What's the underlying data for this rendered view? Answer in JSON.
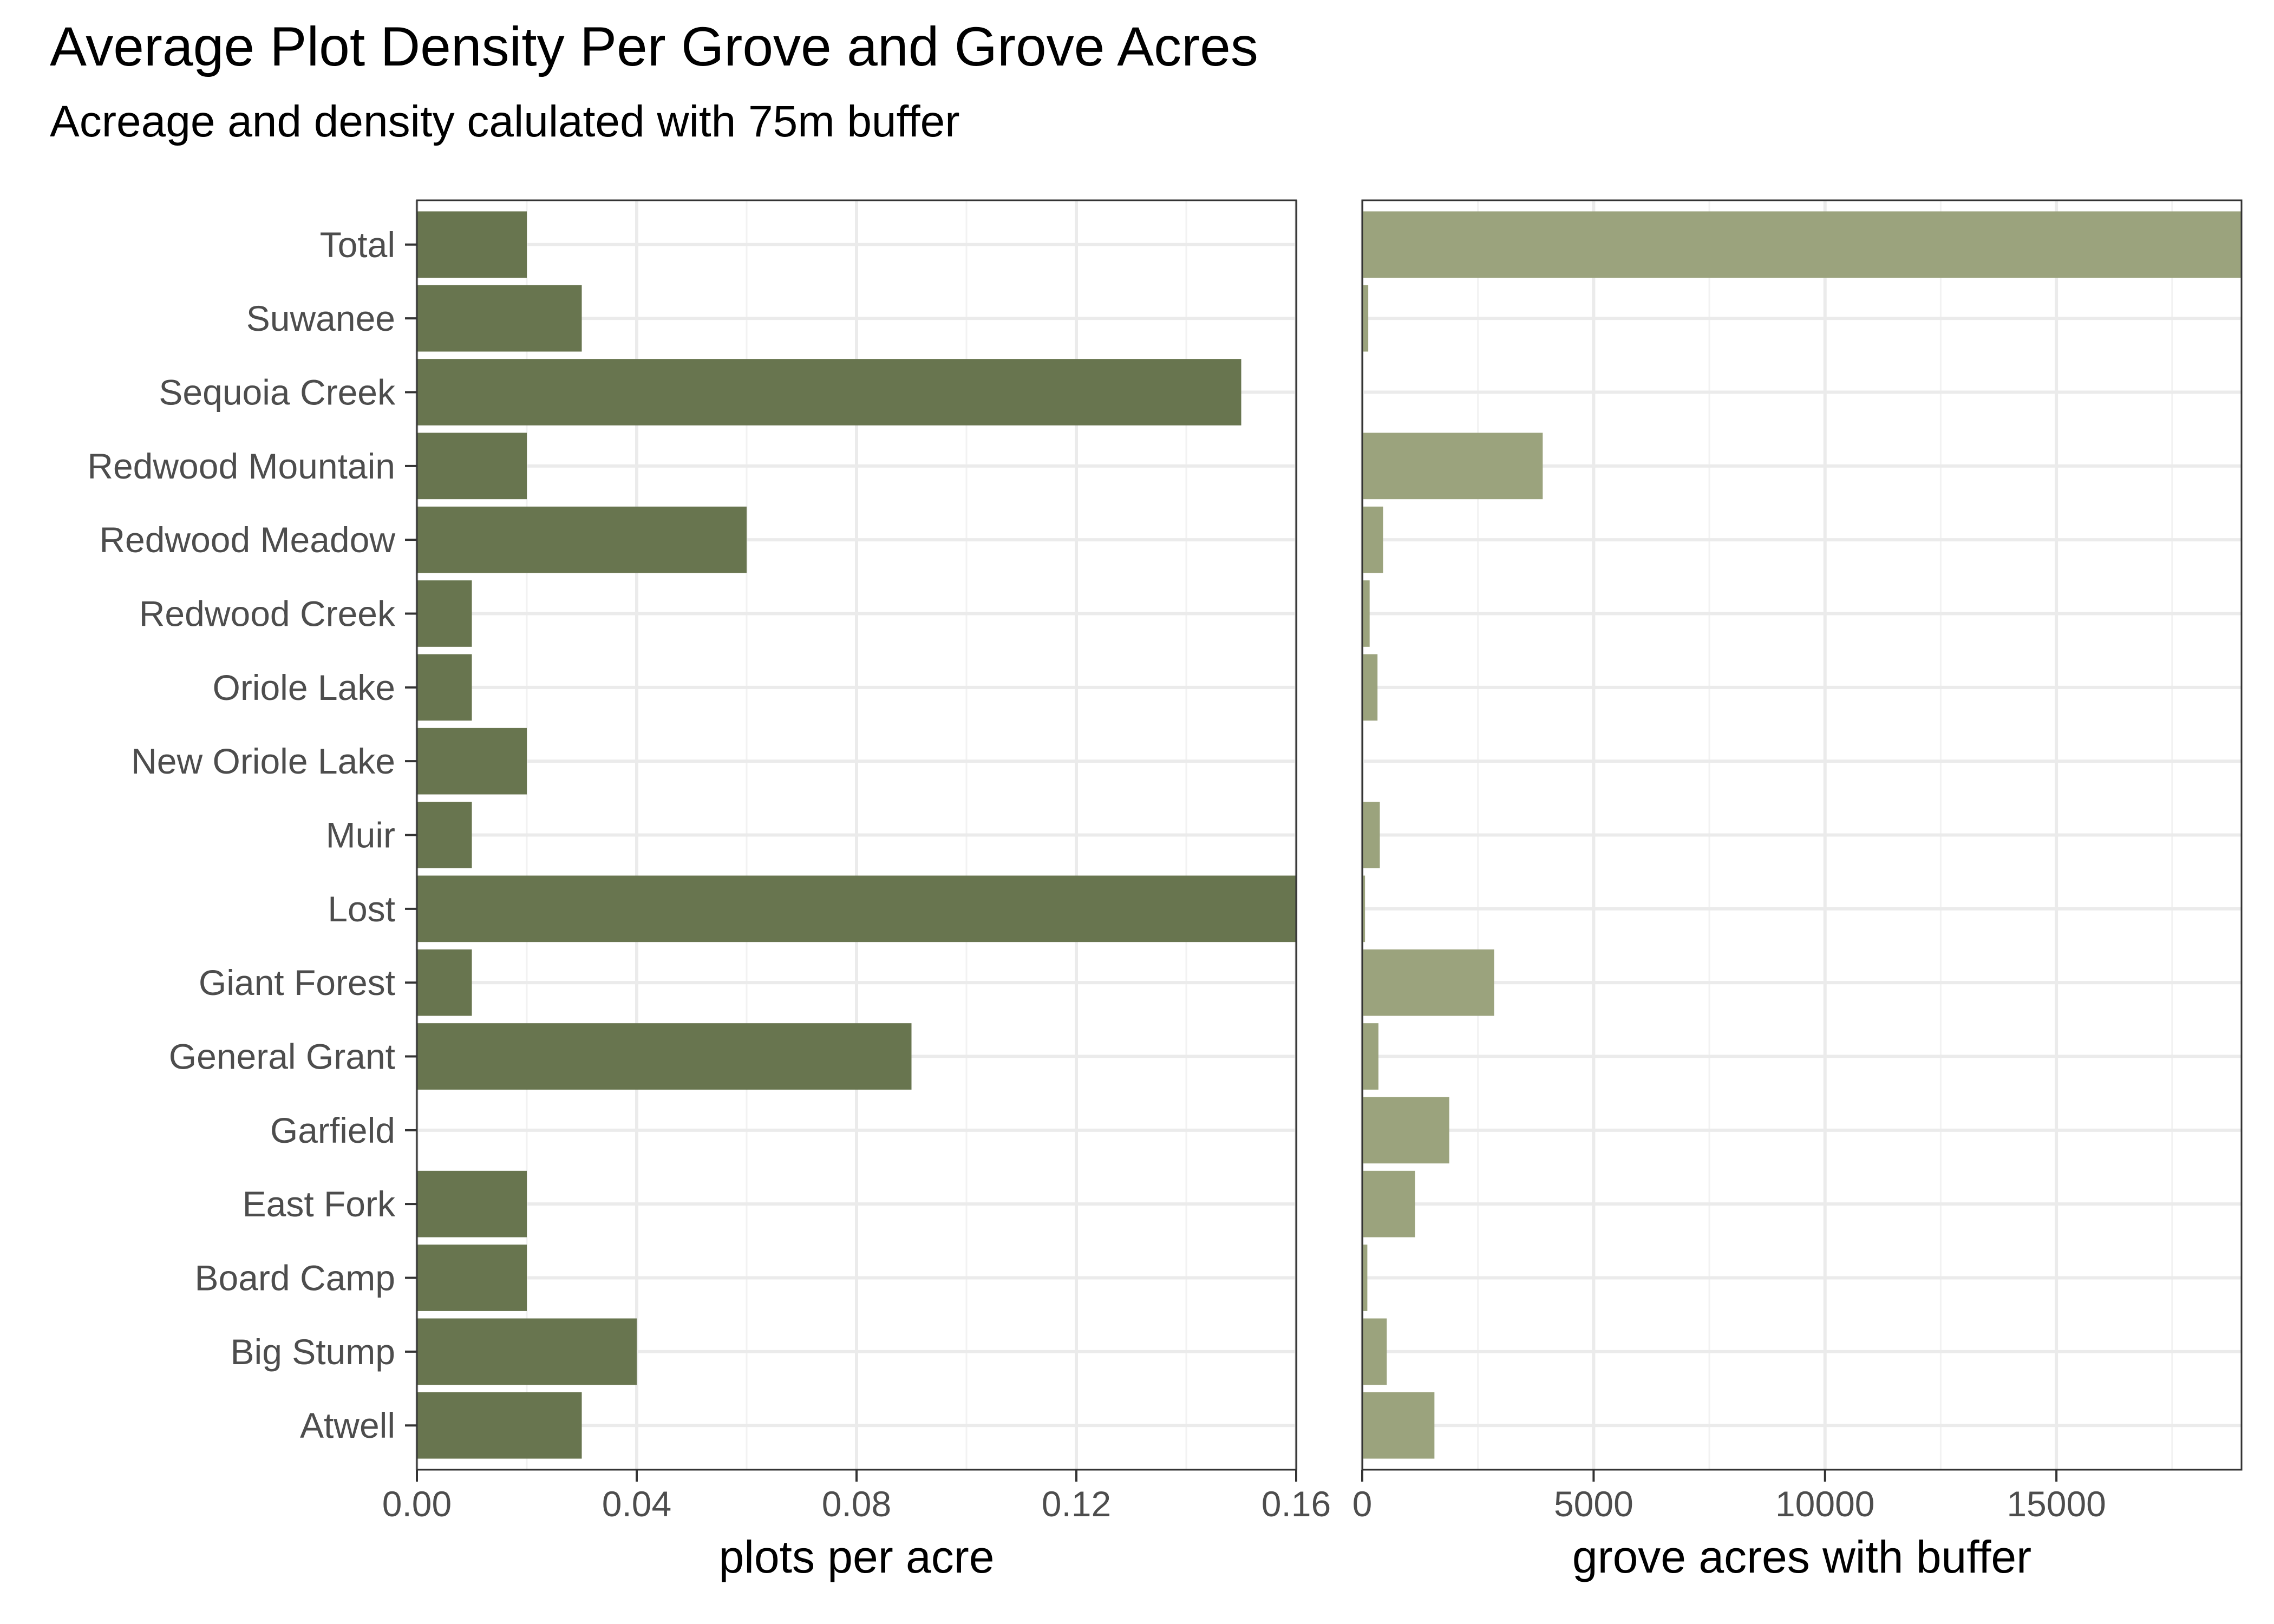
{
  "colors": {
    "density_bar": "#68754f",
    "acres_bar": "#9ba37d",
    "grid_major": "#ebebeb",
    "grid_minor": "#f2f2f2",
    "panel_border": "#333333",
    "tick_text": "#4d4d4d"
  },
  "chart_data": {
    "type": "bar",
    "orientation": "horizontal",
    "title": "Average Plot Density Per Grove and Grove Acres",
    "subtitle": "Acreage and density calulated with 75m buffer",
    "categories": [
      "Total",
      "Suwanee",
      "Sequoia Creek",
      "Redwood Mountain",
      "Redwood Meadow",
      "Redwood Creek",
      "Oriole Lake",
      "New Oriole Lake",
      "Muir",
      "Lost",
      "Giant Forest",
      "General Grant",
      "Garfield",
      "East Fork",
      "Board Camp",
      "Big Stump",
      "Atwell"
    ],
    "panels": [
      {
        "name": "density",
        "xlabel": "plots per acre",
        "xlim": [
          0,
          0.16
        ],
        "ticks": [
          0.0,
          0.04,
          0.08,
          0.12,
          0.16
        ],
        "tick_labels": [
          "0.00",
          "0.04",
          "0.08",
          "0.12",
          "0.16"
        ],
        "values": [
          0.02,
          0.03,
          0.15,
          0.02,
          0.06,
          0.01,
          0.01,
          0.02,
          0.01,
          0.16,
          0.01,
          0.09,
          0.0,
          0.02,
          0.02,
          0.04,
          0.03
        ]
      },
      {
        "name": "acres",
        "xlabel": "grove acres with buffer",
        "xlim": [
          0,
          19000
        ],
        "ticks": [
          0,
          5000,
          10000,
          15000
        ],
        "tick_labels": [
          "0",
          "5000",
          "10000",
          "15000"
        ],
        "values": [
          19000,
          130,
          20,
          3900,
          450,
          160,
          330,
          20,
          380,
          60,
          2850,
          350,
          1880,
          1140,
          110,
          530,
          1560
        ]
      }
    ],
    "grid": true,
    "legend": "none"
  }
}
